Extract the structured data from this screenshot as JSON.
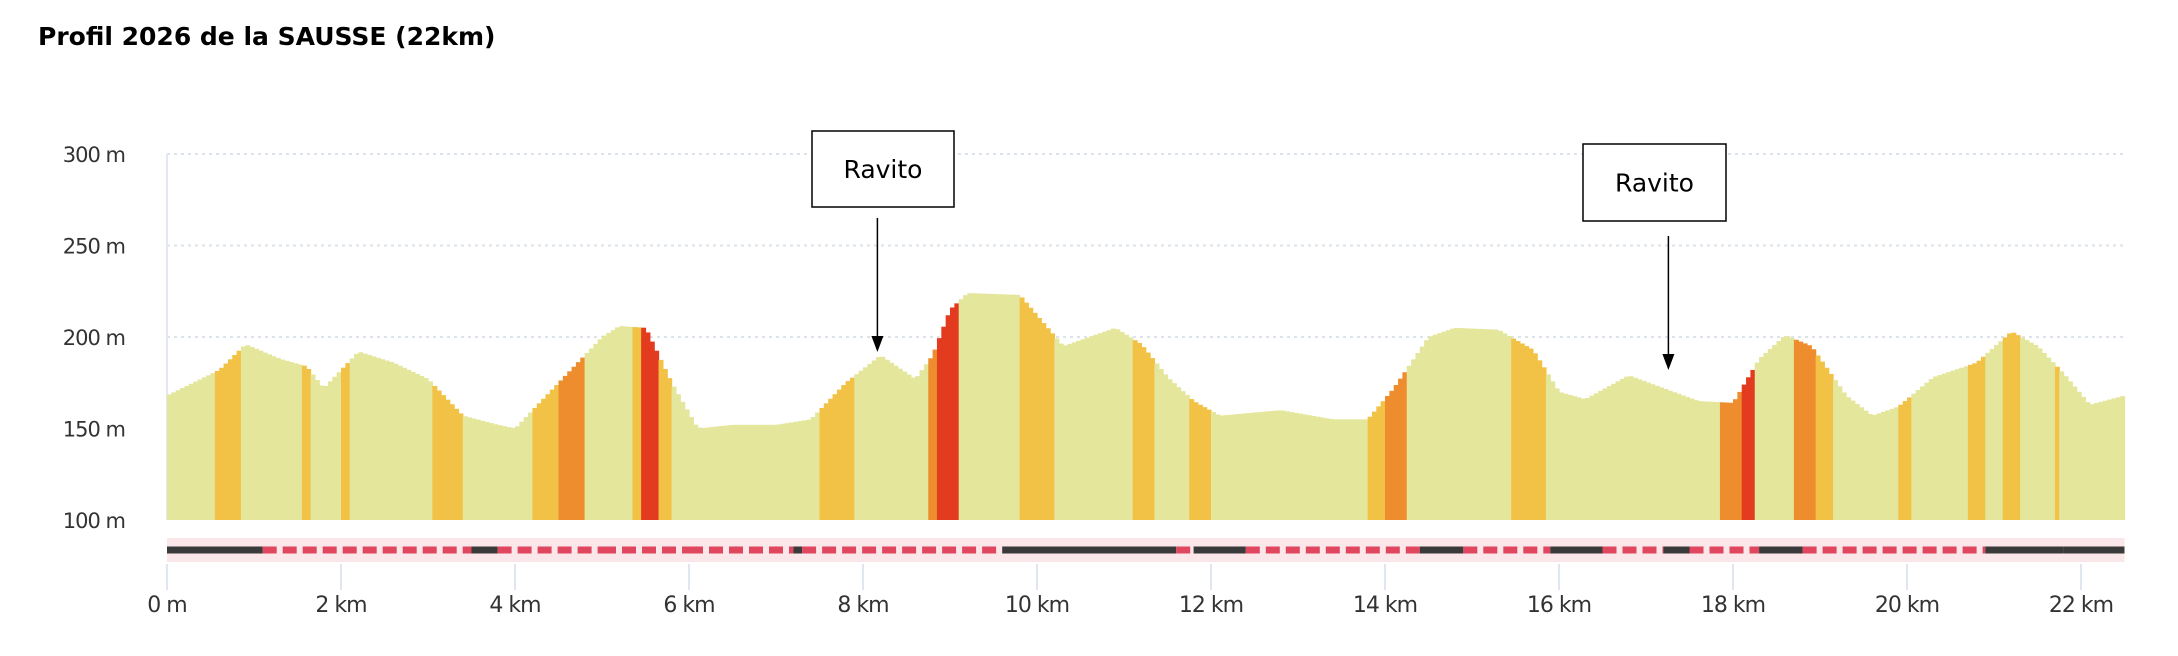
{
  "title": "Profil 2026 de la SAUSSE (22km)",
  "chart_data": {
    "type": "area",
    "title": "Profil 2026 de la SAUSSE (22km)",
    "xlabel": "",
    "ylabel": "",
    "xlim": [
      0,
      22.5
    ],
    "ylim": [
      100,
      300
    ],
    "grid": true,
    "yticks": [
      {
        "v": 100,
        "label": "100 m"
      },
      {
        "v": 150,
        "label": "150 m"
      },
      {
        "v": 200,
        "label": "200 m"
      },
      {
        "v": 250,
        "label": "250 m"
      },
      {
        "v": 300,
        "label": "300 m"
      }
    ],
    "xticks": [
      {
        "v": 0,
        "label": "0 m"
      },
      {
        "v": 2,
        "label": "2 km"
      },
      {
        "v": 4,
        "label": "4 km"
      },
      {
        "v": 6,
        "label": "6 km"
      },
      {
        "v": 8,
        "label": "8 km"
      },
      {
        "v": 10,
        "label": "10 km"
      },
      {
        "v": 12,
        "label": "12 km"
      },
      {
        "v": 14,
        "label": "14 km"
      },
      {
        "v": 16,
        "label": "16 km"
      },
      {
        "v": 18,
        "label": "18 km"
      },
      {
        "v": 20,
        "label": "20 km"
      },
      {
        "v": 22,
        "label": "22 km"
      }
    ],
    "profile": [
      [
        0,
        168
      ],
      [
        0.3,
        175
      ],
      [
        0.6,
        182
      ],
      [
        0.9,
        196
      ],
      [
        1.3,
        188
      ],
      [
        1.6,
        184
      ],
      [
        1.8,
        172
      ],
      [
        2.2,
        192
      ],
      [
        2.6,
        186
      ],
      [
        3.0,
        177
      ],
      [
        3.4,
        157
      ],
      [
        3.8,
        152
      ],
      [
        4.0,
        150
      ],
      [
        4.5,
        175
      ],
      [
        5.0,
        200
      ],
      [
        5.2,
        206
      ],
      [
        5.5,
        205
      ],
      [
        5.8,
        175
      ],
      [
        6.1,
        150
      ],
      [
        6.5,
        152
      ],
      [
        7.0,
        152
      ],
      [
        7.4,
        155
      ],
      [
        7.8,
        175
      ],
      [
        8.2,
        190
      ],
      [
        8.6,
        177
      ],
      [
        8.8,
        190
      ],
      [
        9.0,
        215
      ],
      [
        9.2,
        224
      ],
      [
        9.8,
        223
      ],
      [
        10.3,
        195
      ],
      [
        10.9,
        205
      ],
      [
        11.2,
        196
      ],
      [
        11.5,
        178
      ],
      [
        11.8,
        165
      ],
      [
        12.1,
        157
      ],
      [
        12.8,
        160
      ],
      [
        13.4,
        155
      ],
      [
        13.8,
        155
      ],
      [
        14.1,
        172
      ],
      [
        14.5,
        200
      ],
      [
        14.8,
        205
      ],
      [
        15.3,
        204
      ],
      [
        15.7,
        193
      ],
      [
        16.0,
        170
      ],
      [
        16.3,
        166
      ],
      [
        16.8,
        179
      ],
      [
        17.2,
        172
      ],
      [
        17.6,
        165
      ],
      [
        18.0,
        164
      ],
      [
        18.3,
        188
      ],
      [
        18.6,
        201
      ],
      [
        18.9,
        195
      ],
      [
        19.3,
        168
      ],
      [
        19.6,
        157
      ],
      [
        19.9,
        162
      ],
      [
        20.3,
        178
      ],
      [
        20.8,
        186
      ],
      [
        21.2,
        203
      ],
      [
        21.5,
        195
      ],
      [
        21.8,
        180
      ],
      [
        22.1,
        163
      ],
      [
        22.5,
        168
      ]
    ],
    "gradient_colors": {
      "flat": "#e4e69c",
      "moderate": "#f2c247",
      "steep": "#ee8d2e",
      "very_steep": "#e33b1f"
    },
    "gradient_segments": [
      [
        0.55,
        0.85,
        "moderate"
      ],
      [
        1.55,
        1.65,
        "moderate"
      ],
      [
        1.98,
        2.1,
        "moderate"
      ],
      [
        3.05,
        3.4,
        "moderate"
      ],
      [
        4.2,
        4.5,
        "moderate"
      ],
      [
        4.5,
        4.8,
        "steep"
      ],
      [
        5.35,
        5.45,
        "moderate"
      ],
      [
        5.45,
        5.65,
        "very_steep"
      ],
      [
        5.65,
        5.8,
        "moderate"
      ],
      [
        7.5,
        7.9,
        "moderate"
      ],
      [
        8.75,
        8.85,
        "steep"
      ],
      [
        8.85,
        9.1,
        "very_steep"
      ],
      [
        9.8,
        10.2,
        "moderate"
      ],
      [
        11.08,
        11.36,
        "moderate"
      ],
      [
        11.76,
        11.99,
        "moderate"
      ],
      [
        13.78,
        14.02,
        "moderate"
      ],
      [
        14.02,
        14.26,
        "steep"
      ],
      [
        15.47,
        15.87,
        "moderate"
      ],
      [
        17.87,
        18.09,
        "steep"
      ],
      [
        18.09,
        18.25,
        "very_steep"
      ],
      [
        18.68,
        18.94,
        "steep"
      ],
      [
        18.94,
        19.14,
        "moderate"
      ],
      [
        19.9,
        20.07,
        "moderate"
      ],
      [
        20.68,
        20.88,
        "moderate"
      ],
      [
        21.08,
        21.28,
        "moderate"
      ],
      [
        21.68,
        21.76,
        "moderate"
      ]
    ],
    "surface_colors": {
      "road": "#3a3a3a",
      "path": "#e0475f"
    },
    "surface_segments": [
      [
        0,
        1.1,
        "road"
      ],
      [
        1.1,
        3.5,
        "path"
      ],
      [
        3.5,
        3.8,
        "road"
      ],
      [
        3.8,
        5.0,
        "path"
      ],
      [
        5.0,
        5.0,
        "road"
      ],
      [
        5.0,
        6.0,
        "path"
      ],
      [
        6.0,
        7.2,
        "path"
      ],
      [
        7.2,
        7.3,
        "road"
      ],
      [
        7.3,
        9.6,
        "path"
      ],
      [
        9.6,
        11.6,
        "road"
      ],
      [
        11.6,
        11.8,
        "path"
      ],
      [
        11.8,
        12.4,
        "road"
      ],
      [
        12.4,
        14.4,
        "path"
      ],
      [
        14.4,
        14.9,
        "road"
      ],
      [
        14.9,
        15.9,
        "path"
      ],
      [
        15.9,
        16.5,
        "road"
      ],
      [
        16.5,
        17.2,
        "path"
      ],
      [
        17.2,
        17.5,
        "road"
      ],
      [
        17.5,
        18.3,
        "path"
      ],
      [
        18.3,
        18.8,
        "road"
      ],
      [
        18.8,
        20.9,
        "path"
      ],
      [
        20.9,
        21.5,
        "road"
      ],
      [
        21.5,
        21.8,
        "road"
      ],
      [
        21.8,
        22.5,
        "road"
      ]
    ],
    "annotations": [
      {
        "label": "Ravito",
        "x": 8.2
      },
      {
        "label": "Ravito",
        "x": 17.2
      }
    ]
  }
}
